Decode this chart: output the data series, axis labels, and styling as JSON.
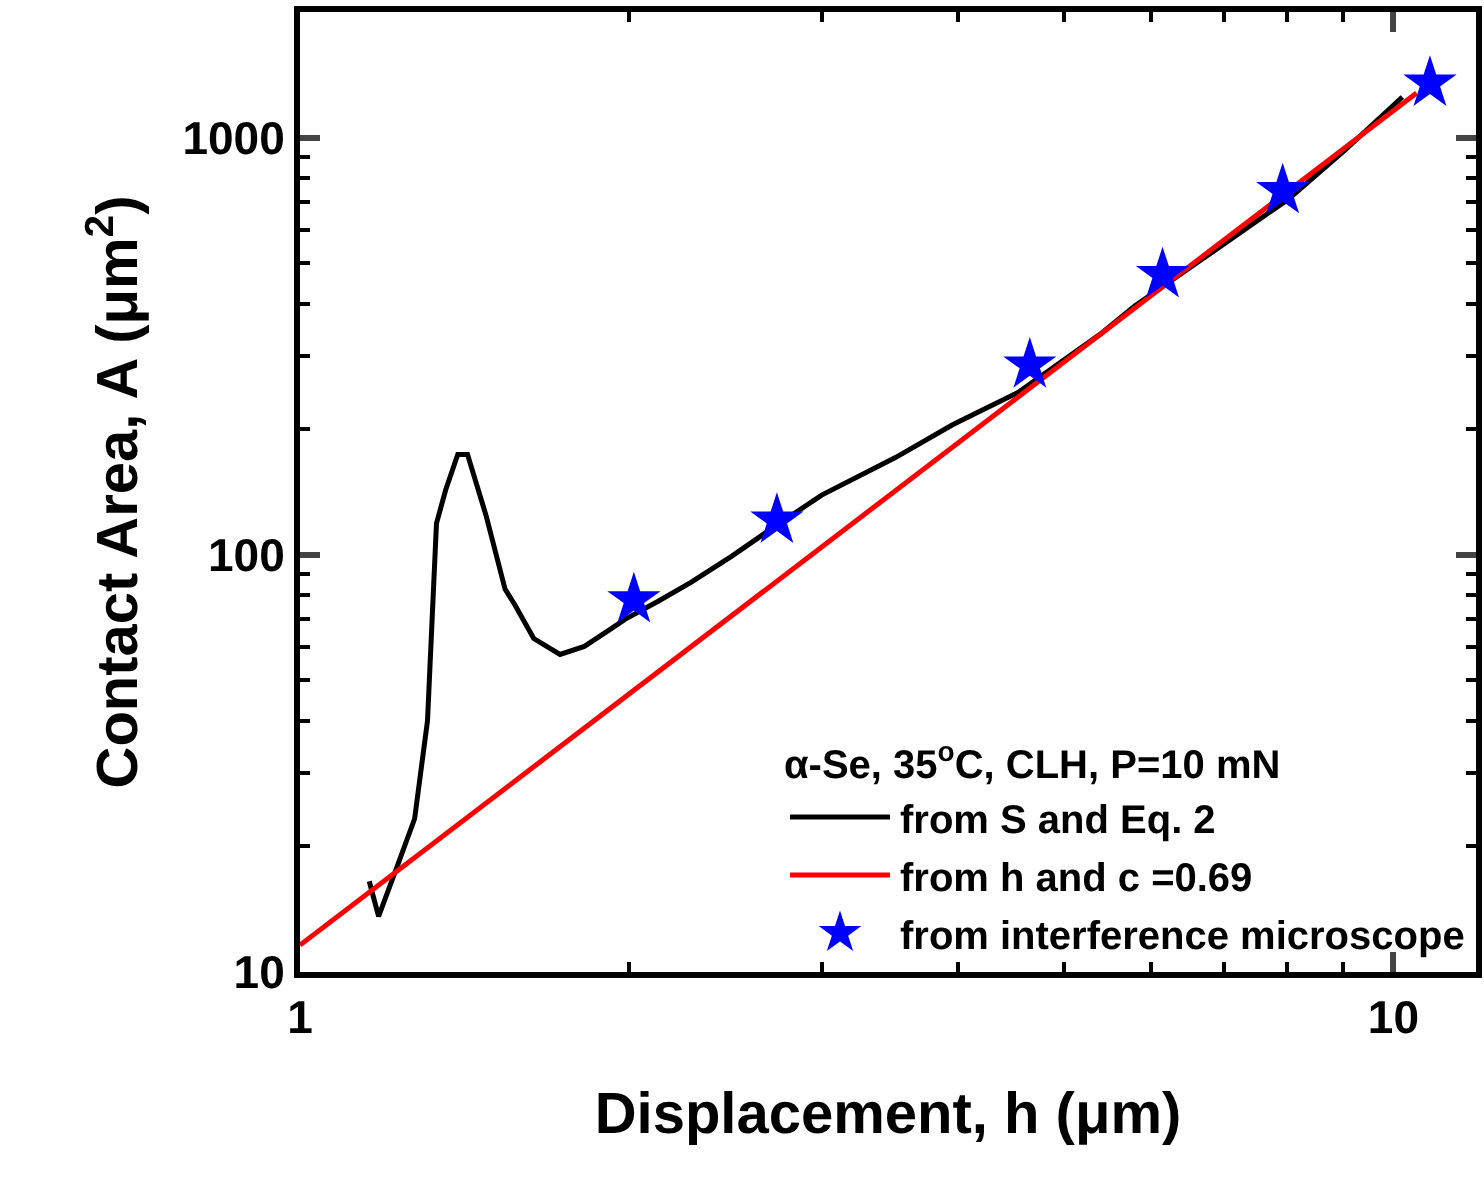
{
  "chart_data": {
    "type": "line",
    "xlabel": "Displacement, h (μm)",
    "ylabel": "Contact Area, A (μm$^{2}$)",
    "legend_title": "α-Se, 35$^{o}$C, CLH, P=10 mN",
    "log": "xy",
    "xlim": [
      1,
      11.9
    ],
    "ylim": [
      10,
      2000
    ],
    "xticks": [
      1,
      10
    ],
    "yticks": [
      10,
      100,
      1000
    ],
    "grid": false,
    "legend": "bottom right",
    "series": [
      {
        "name": "from S and Eq. 2",
        "color": "#000000",
        "marker": "none",
        "line_style": "solid",
        "x": [
          1.157,
          1.18,
          1.225,
          1.273,
          1.308,
          1.333,
          1.359,
          1.394,
          1.423,
          1.48,
          1.54,
          1.573,
          1.636,
          1.729,
          1.82,
          1.917,
          1.984,
          2.126,
          2.278,
          2.483,
          2.706,
          3.0,
          3.504,
          3.952,
          4.536,
          5.387,
          5.8,
          6.98,
          8.01,
          9.03,
          10.19
        ],
        "values": [
          16.5,
          13.6,
          17.7,
          23.3,
          40,
          119,
          143,
          174,
          174,
          124,
          82.8,
          75.7,
          63,
          57.7,
          60.3,
          66,
          70.1,
          77.4,
          85.9,
          99.3,
          116,
          139,
          171,
          205,
          245,
          337,
          395,
          553,
          711,
          933,
          1251
        ]
      },
      {
        "name": "from h and c =0.69",
        "color": "#ff0000",
        "marker": "none",
        "line_style": "solid",
        "x": [
          1,
          10.5
        ],
        "values": [
          11.6,
          1279
        ]
      },
      {
        "name": "from interference microscope",
        "type": "scatter",
        "color": "#0000ff",
        "marker": "star",
        "x": [
          2.02,
          2.73,
          4.65,
          6.15,
          7.92,
          10.8
        ],
        "values": [
          78,
          121,
          285,
          469,
          746,
          1350
        ]
      }
    ]
  }
}
